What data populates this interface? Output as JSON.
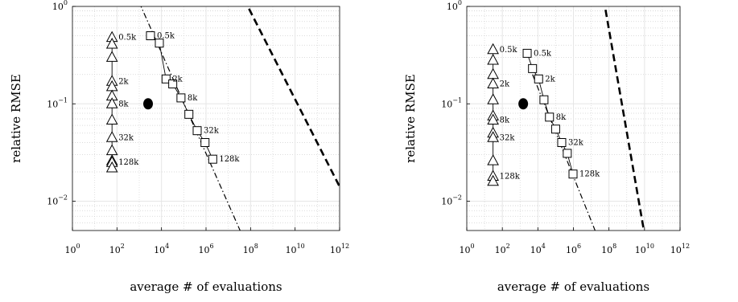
{
  "chart_data": [
    {
      "type": "line",
      "xlabel": "average # of evaluations",
      "ylabel": "relative RMSE",
      "xscale": "log",
      "yscale": "log",
      "xlim": [
        1,
        1000000000000
      ],
      "ylim": [
        0.005,
        1
      ],
      "xticks": [
        {
          "base": "10",
          "exp": "0"
        },
        {
          "base": "10",
          "exp": "2"
        },
        {
          "base": "10",
          "exp": "4"
        },
        {
          "base": "10",
          "exp": "6"
        },
        {
          "base": "10",
          "exp": "8"
        },
        {
          "base": "10",
          "exp": "10"
        },
        {
          "base": "10",
          "exp": "12"
        }
      ],
      "yticks": [
        {
          "value": 1,
          "base": "10",
          "exp": "0"
        },
        {
          "value": 0.1,
          "base": "10",
          "exp": "−1"
        },
        {
          "value": 0.01,
          "base": "10",
          "exp": "−2"
        }
      ],
      "grid": true,
      "series": [
        {
          "marker": "triangle",
          "x": [
            60,
            60,
            60,
            60,
            60,
            60,
            60,
            60,
            60,
            60,
            60,
            60,
            60
          ],
          "y": [
            0.48,
            0.41,
            0.3,
            0.17,
            0.15,
            0.12,
            0.1,
            0.068,
            0.045,
            0.033,
            0.026,
            0.025,
            0.022
          ],
          "labels": [
            {
              "index": 0,
              "text": "0.5k"
            },
            {
              "index": 3,
              "text": "2k"
            },
            {
              "index": 6,
              "text": "8k"
            },
            {
              "index": 8,
              "text": "32k"
            },
            {
              "index": 11,
              "text": "128k"
            }
          ]
        },
        {
          "marker": "square",
          "x": [
            3200,
            8000,
            16000,
            32000,
            75000,
            170000,
            400000,
            900000,
            2000000
          ],
          "y": [
            0.5,
            0.42,
            0.18,
            0.16,
            0.115,
            0.078,
            0.053,
            0.04,
            0.027
          ],
          "labels": [
            {
              "index": 0,
              "text": "0.5k"
            },
            {
              "index": 2,
              "text": "2k"
            },
            {
              "index": 4,
              "text": "8k"
            },
            {
              "index": 6,
              "text": "32k"
            },
            {
              "index": 8,
              "text": "128k"
            }
          ]
        },
        {
          "marker": "circle",
          "x": [
            2500
          ],
          "y": [
            0.1
          ]
        }
      ],
      "reference_lines": [
        {
          "style": "dash-dot",
          "x": [
            1000,
            40000000
          ],
          "y": [
            1.1,
            0.00459
          ]
        },
        {
          "style": "dashed-thick",
          "x": [
            50000000,
            1000000000000
          ],
          "y": [
            1.2,
            0.0141
          ]
        }
      ]
    },
    {
      "type": "line",
      "xlabel": "average # of evaluations",
      "ylabel": "relative RMSE",
      "xscale": "log",
      "yscale": "log",
      "xlim": [
        1,
        1000000000000
      ],
      "ylim": [
        0.005,
        1
      ],
      "xticks": [
        {
          "base": "10",
          "exp": "0"
        },
        {
          "base": "10",
          "exp": "2"
        },
        {
          "base": "10",
          "exp": "4"
        },
        {
          "base": "10",
          "exp": "6"
        },
        {
          "base": "10",
          "exp": "8"
        },
        {
          "base": "10",
          "exp": "10"
        },
        {
          "base": "10",
          "exp": "12"
        }
      ],
      "yticks": [
        {
          "value": 1,
          "base": "10",
          "exp": "0"
        },
        {
          "value": 0.1,
          "base": "10",
          "exp": "−1"
        },
        {
          "value": 0.01,
          "base": "10",
          "exp": "−2"
        }
      ],
      "grid": true,
      "series": [
        {
          "marker": "triangle",
          "x": [
            30,
            30,
            30,
            30,
            30,
            30,
            30,
            30,
            30,
            30,
            30,
            30
          ],
          "y": [
            0.36,
            0.28,
            0.2,
            0.16,
            0.11,
            0.075,
            0.068,
            0.05,
            0.045,
            0.026,
            0.018,
            0.016
          ],
          "labels": [
            {
              "index": 0,
              "text": "0.5k"
            },
            {
              "index": 3,
              "text": "2k"
            },
            {
              "index": 6,
              "text": "8k"
            },
            {
              "index": 8,
              "text": "32k"
            },
            {
              "index": 10,
              "text": "128k"
            }
          ]
        },
        {
          "marker": "square",
          "x": [
            2500,
            5000,
            11000,
            22000,
            45000,
            100000,
            220000,
            450000,
            950000
          ],
          "y": [
            0.33,
            0.23,
            0.18,
            0.11,
            0.073,
            0.055,
            0.04,
            0.031,
            0.019
          ],
          "labels": [
            {
              "index": 0,
              "text": "0.5k"
            },
            {
              "index": 2,
              "text": "2k"
            },
            {
              "index": 4,
              "text": "8k"
            },
            {
              "index": 6,
              "text": "32k"
            },
            {
              "index": 8,
              "text": "128k"
            }
          ]
        },
        {
          "marker": "circle",
          "x": [
            1500
          ],
          "y": [
            0.1
          ]
        }
      ],
      "reference_lines": [
        {
          "style": "dash-dot",
          "x": [
            5000,
            20000000
          ],
          "y": [
            0.2,
            0.00459
          ]
        },
        {
          "style": "dashed-thick",
          "x": [
            50000000,
            10000000000
          ],
          "y": [
            1.2,
            0.00459
          ]
        }
      ]
    }
  ]
}
